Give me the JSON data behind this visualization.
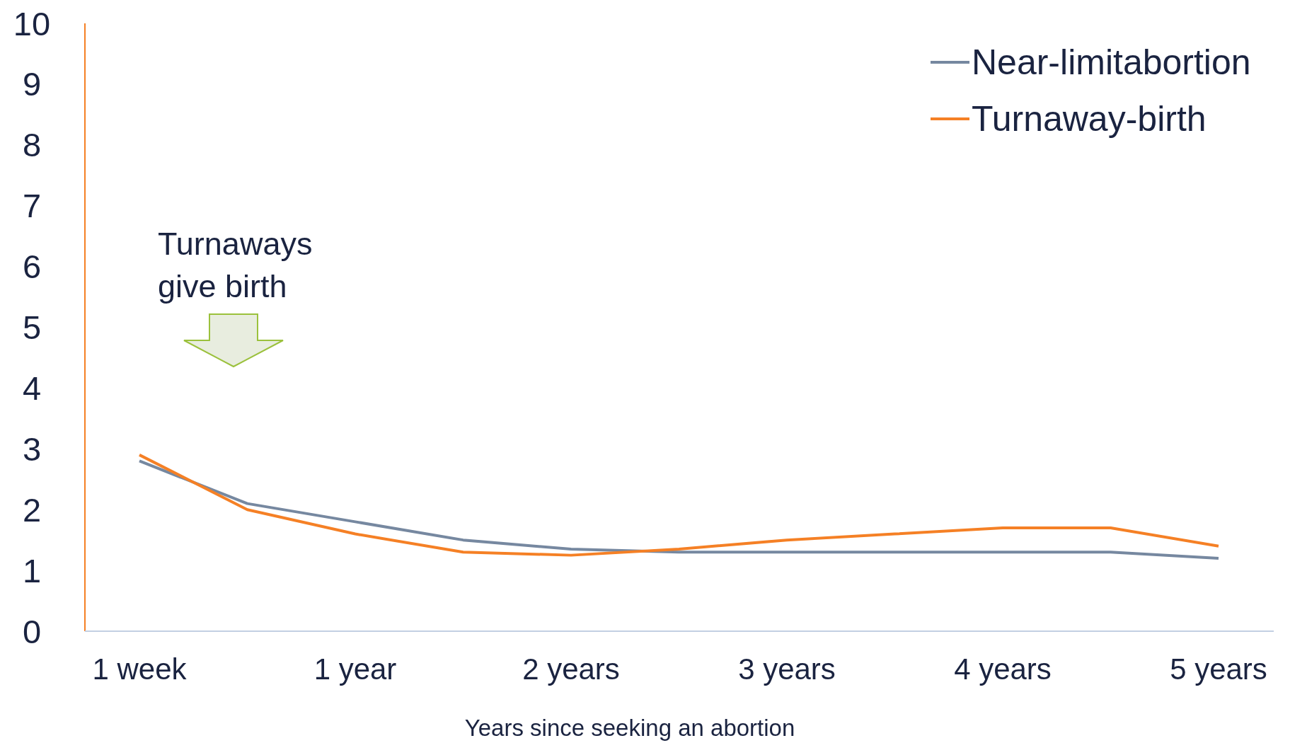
{
  "chart_data": {
    "type": "line",
    "xlabel": "Years since seeking an abortion",
    "categories": [
      "1 week",
      null,
      "1 year",
      null,
      "2 years",
      null,
      "3 years",
      null,
      "4 years",
      null,
      "5 years"
    ],
    "series": [
      {
        "name": "Near-limitabortion",
        "color": "#7688a0",
        "values": [
          2.8,
          2.1,
          1.8,
          1.5,
          1.35,
          1.3,
          1.3,
          1.3,
          1.3,
          1.3,
          1.2
        ]
      },
      {
        "name": "Turnaway-birth",
        "color": "#f58025",
        "values": [
          2.9,
          2.0,
          1.6,
          1.3,
          1.25,
          1.35,
          1.5,
          1.6,
          1.7,
          1.7,
          1.4
        ]
      }
    ],
    "ylim": [
      0,
      10
    ],
    "yticks": [
      0,
      1,
      2,
      3,
      4,
      5,
      6,
      7,
      8,
      9,
      10
    ],
    "grid": false,
    "legend": "top right",
    "marker": "none",
    "line_style": "solid",
    "annotations": [
      "Turnaways give birth"
    ]
  }
}
